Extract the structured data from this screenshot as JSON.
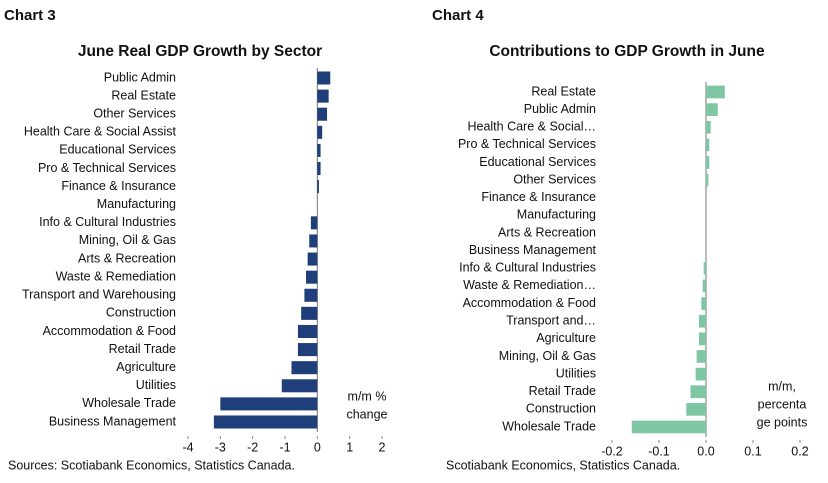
{
  "chart_data": [
    {
      "type": "bar",
      "heading": "Chart 3",
      "title": "June Real GDP Growth by Sector",
      "categories": [
        "Public Admin",
        "Real Estate",
        "Other Services",
        "Health Care & Social Assist",
        "Educational Services",
        "Pro & Technical Services",
        "Finance & Insurance",
        "Manufacturing",
        "Info & Cultural Industries",
        "Mining, Oil & Gas",
        "Arts & Recreation",
        "Waste & Remediation",
        "Transport and Warehousing",
        "Construction",
        "Accommodation & Food",
        "Retail Trade",
        "Agriculture",
        "Utilities",
        "Wholesale Trade",
        "Business Management"
      ],
      "values": [
        0.4,
        0.35,
        0.3,
        0.15,
        0.1,
        0.1,
        0.05,
        0,
        -0.2,
        -0.25,
        -0.3,
        -0.35,
        -0.4,
        -0.5,
        -0.6,
        -0.6,
        -0.8,
        -1.1,
        -3.0,
        -3.2
      ],
      "color": "#1f3f7a",
      "xlim": [
        -4,
        2
      ],
      "xticks": [
        -4,
        -3,
        -2,
        -1,
        0,
        1,
        2
      ],
      "annotation": [
        "m/m %",
        "change"
      ],
      "source": "Sources: Scotiabank Economics, Statistics Canada."
    },
    {
      "type": "bar",
      "heading": "Chart 4",
      "title": "Contributions to GDP Growth in June",
      "categories": [
        "Real Estate",
        "Public Admin",
        "Health Care & Social…",
        "Pro & Technical Services",
        "Educational Services",
        "Other Services",
        "Finance & Insurance",
        "Manufacturing",
        "Arts & Recreation",
        "Business Management",
        "Info & Cultural Industries",
        "Waste & Remediation…",
        "Accommodation & Food",
        "Transport and…",
        "Agriculture",
        "Mining, Oil & Gas",
        "Utilities",
        "Retail Trade",
        "Construction",
        "Wholesale Trade"
      ],
      "values": [
        0.04,
        0.025,
        0.01,
        0.007,
        0.007,
        0.005,
        0,
        0,
        0,
        0,
        -0.005,
        -0.007,
        -0.01,
        -0.015,
        -0.015,
        -0.02,
        -0.022,
        -0.033,
        -0.042,
        -0.158
      ],
      "color": "#7fc6a4",
      "xlim": [
        -0.2,
        0.2
      ],
      "xticks": [
        -0.2,
        -0.1,
        {
          "value": 0,
          "label": "0.0"
        },
        0.1,
        0.2
      ],
      "annotation": [
        "m/m,",
        "percenta",
        "ge points"
      ],
      "source": "Scotiabank Economics, Statistics Canada."
    }
  ]
}
